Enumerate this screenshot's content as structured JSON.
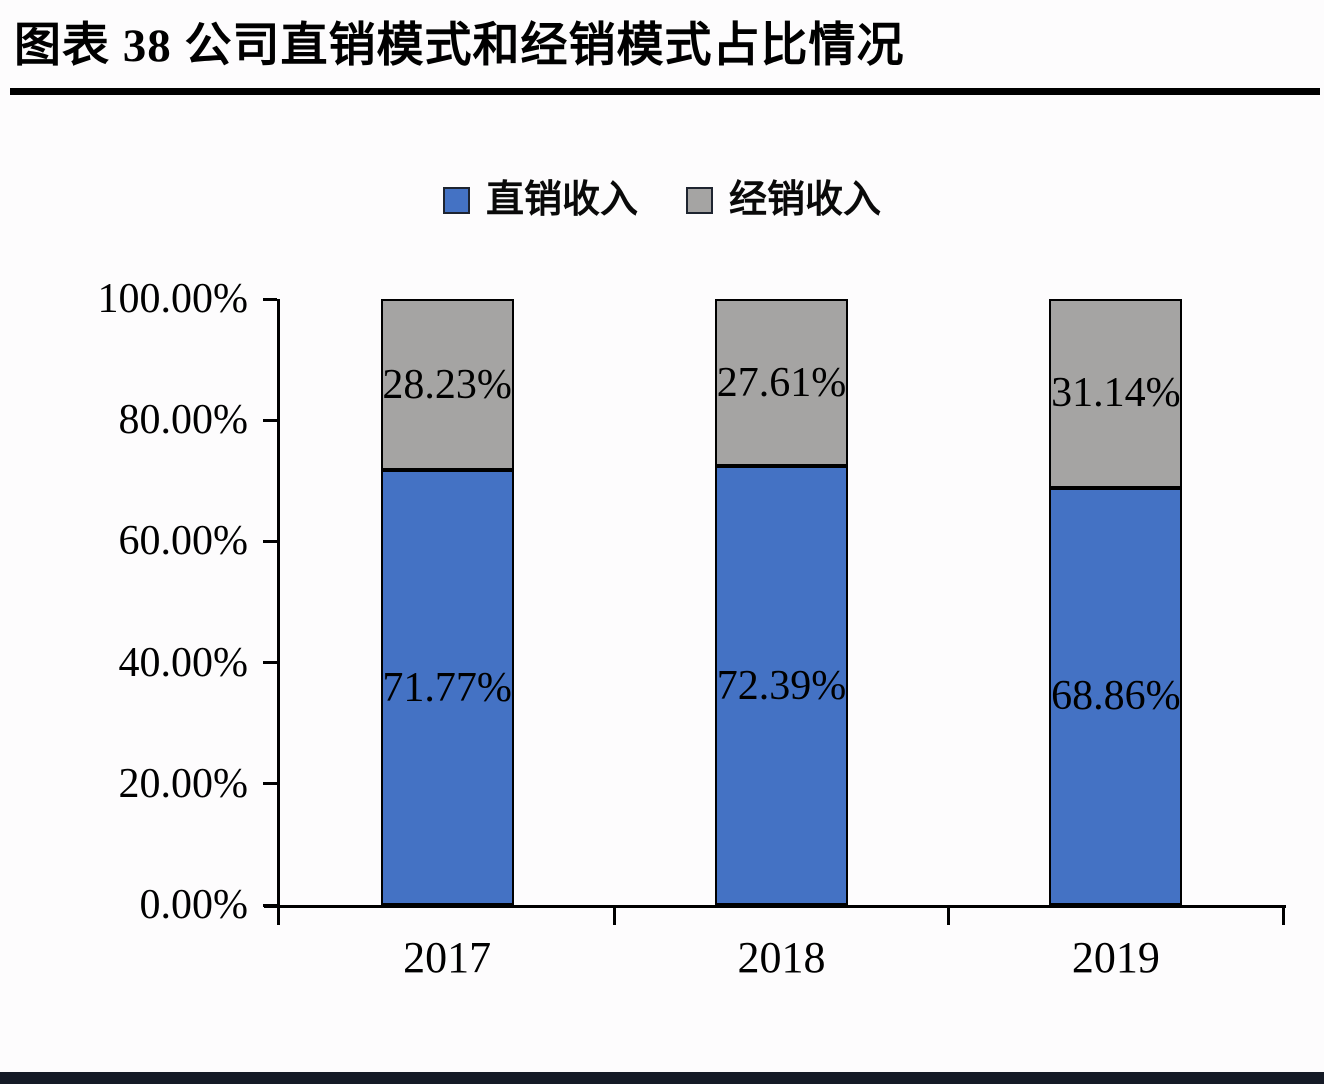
{
  "page": {
    "title": "图表 38 公司直销模式和经销模式占比情况",
    "colors": {
      "background": "#FDFCFD",
      "title_text": "#000000",
      "title_rule": "#000000",
      "axis": "#000000",
      "bottom_bar": "#151A26"
    }
  },
  "chart_data": {
    "type": "bar",
    "stacked": true,
    "title": "图表 38 公司直销模式和经销模式占比情况",
    "categories": [
      "2017",
      "2018",
      "2019"
    ],
    "series": [
      {
        "name": "直销收入",
        "color": "#4472C4",
        "values": [
          71.77,
          72.39,
          68.86
        ],
        "labels": [
          "71.77%",
          "72.39%",
          "68.86%"
        ]
      },
      {
        "name": "经销收入",
        "color": "#A5A4A3",
        "values": [
          28.23,
          27.61,
          31.14
        ],
        "labels": [
          "28.23%",
          "27.61%",
          "31.14%"
        ]
      }
    ],
    "ylim": [
      0,
      100
    ],
    "yticks": [
      {
        "value": 0,
        "label": "0.00%"
      },
      {
        "value": 20,
        "label": "20.00%"
      },
      {
        "value": 40,
        "label": "40.00%"
      },
      {
        "value": 60,
        "label": "60.00%"
      },
      {
        "value": 80,
        "label": "80.00%"
      },
      {
        "value": 100,
        "label": "100.00%"
      }
    ],
    "grid": false,
    "legend_position": "top-center",
    "bar_border_color": "#000000"
  }
}
